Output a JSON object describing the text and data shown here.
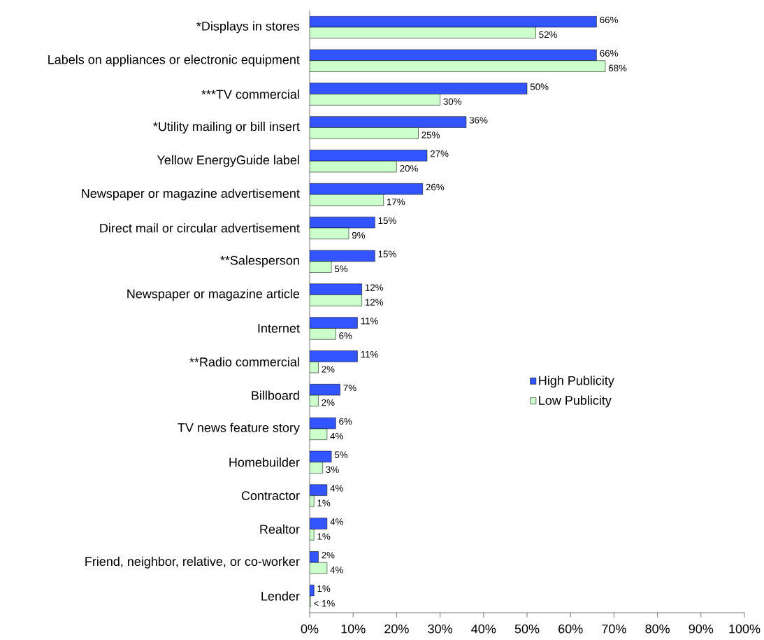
{
  "chart_data": {
    "type": "bar",
    "orientation": "horizontal",
    "legend": "right",
    "grid": false,
    "categories": [
      "*Displays in stores",
      "Labels on appliances or electronic equipment",
      "***TV commercial",
      "*Utility mailing or bill insert",
      "Yellow EnergyGuide label",
      "Newspaper or magazine advertisement",
      "Direct mail or circular advertisement",
      "**Salesperson",
      "Newspaper or magazine article",
      "Internet",
      "**Radio commercial",
      "Billboard",
      "TV news feature story",
      "Homebuilder",
      "Contractor",
      "Realtor",
      "Friend, neighbor, relative, or co-worker",
      "Lender"
    ],
    "series": [
      {
        "name": "High Publicity",
        "color": "#3355ff",
        "values": [
          66,
          66,
          50,
          36,
          27,
          26,
          15,
          15,
          12,
          11,
          11,
          7,
          6,
          5,
          4,
          4,
          2,
          1
        ],
        "value_labels": [
          "66%",
          "66%",
          "50%",
          "36%",
          "27%",
          "26%",
          "15%",
          "15%",
          "12%",
          "11%",
          "11%",
          "7%",
          "6%",
          "5%",
          "4%",
          "4%",
          "2%",
          "1%"
        ]
      },
      {
        "name": "Low Publicity",
        "color": "#ccffcc",
        "values": [
          52,
          68,
          30,
          25,
          20,
          17,
          9,
          5,
          12,
          6,
          2,
          2,
          4,
          3,
          1,
          1,
          4,
          0.2
        ],
        "value_labels": [
          "52%",
          "68%",
          "30%",
          "25%",
          "20%",
          "17%",
          "9%",
          "5%",
          "12%",
          "6%",
          "2%",
          "2%",
          "4%",
          "3%",
          "1%",
          "1%",
          "4%",
          "< 1%"
        ]
      }
    ],
    "xlim": [
      0,
      100
    ],
    "xticks": [
      {
        "value": 0,
        "label": "0%"
      },
      {
        "value": 10,
        "label": "10%"
      },
      {
        "value": 20,
        "label": "20%"
      },
      {
        "value": 30,
        "label": "30%"
      },
      {
        "value": 40,
        "label": "40%"
      },
      {
        "value": 50,
        "label": "50%"
      },
      {
        "value": 60,
        "label": "60%"
      },
      {
        "value": 70,
        "label": "70%"
      },
      {
        "value": 80,
        "label": "80%"
      },
      {
        "value": 90,
        "label": "90%"
      },
      {
        "value": 100,
        "label": "100%"
      }
    ]
  }
}
